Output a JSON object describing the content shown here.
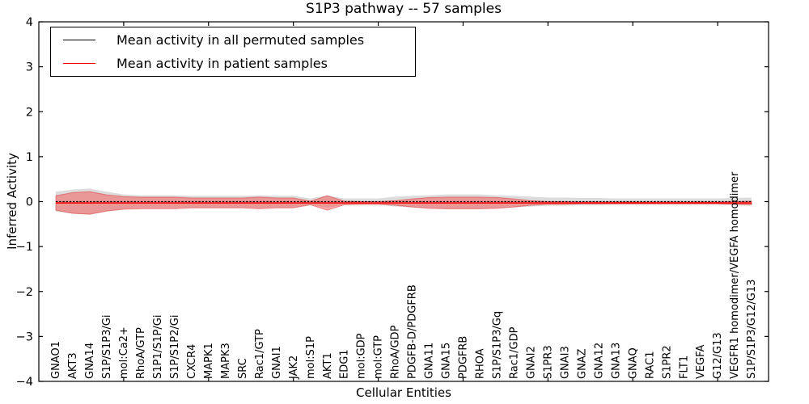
{
  "figure": {
    "title": "S1P3 pathway -- 57 samples",
    "background_color": "#ffffff"
  },
  "legend": {
    "entries": [
      {
        "label": "Mean activity in all permuted samples",
        "color": "#000000"
      },
      {
        "label": "Mean activity in patient samples",
        "color": "#ff0000"
      }
    ]
  },
  "chart_data": {
    "type": "line",
    "title": "S1P3 pathway -- 57 samples",
    "xlabel": "Cellular Entities",
    "ylabel": "Inferred Activity",
    "ylim": [
      -4,
      4
    ],
    "xlim": [
      0,
      43
    ],
    "yticks": [
      4,
      3,
      2,
      1,
      0,
      -1,
      -2,
      -3,
      -4
    ],
    "ytick_labels": [
      "4",
      "3",
      "2",
      "1",
      "0",
      "−1",
      "−2",
      "−3",
      "−4"
    ],
    "xticks_unlabeled": [
      5,
      10,
      15,
      20,
      25,
      30,
      35,
      40
    ],
    "grid": false,
    "legend_position": "upper left",
    "categories": [
      "GNAO1",
      "AKT3",
      "GNA14",
      "S1P/S1P3/Gi",
      "mol:Ca2+",
      "RhoA/GTP",
      "S1P1/S1P/Gi",
      "S1P/S1P2/Gi",
      "CXCR4",
      "MAPK1",
      "MAPK3",
      "SRC",
      "Rac1/GTP",
      "GNAI1",
      "JAK2",
      "mol:S1P",
      "AKT1",
      "EDG1",
      "mol:GDP",
      "mol:GTP",
      "RhoA/GDP",
      "PDGFB-D/PDGFRB",
      "GNA11",
      "GNA15",
      "PDGFRB",
      "RHOA",
      "S1P/S1P3/Gq",
      "Rac1/GDP",
      "GNAI2",
      "S1PR3",
      "GNAI3",
      "GNAZ",
      "GNA12",
      "GNA13",
      "GNAQ",
      "RAC1",
      "S1PR2",
      "FLT1",
      "VEGFA",
      "G12/G13",
      "VEGFR1 homodimer/VEGFA homodimer",
      "S1P/S1P3/G12/G13"
    ],
    "series": [
      {
        "name": "Mean activity in all permuted samples",
        "line_color": "#000000",
        "line_style": "dashdot",
        "band_color": "rgba(128,128,128,0.28)",
        "mean": [
          0,
          0,
          0,
          0,
          0,
          0,
          0,
          0,
          0,
          0,
          0,
          0,
          0,
          0,
          0,
          0,
          0,
          0,
          0,
          0,
          0,
          0,
          0,
          0,
          0,
          0,
          0,
          0,
          0,
          0,
          0,
          0,
          0,
          0,
          0,
          0,
          0,
          0,
          0,
          0,
          0,
          0
        ],
        "std": [
          0.22,
          0.27,
          0.29,
          0.22,
          0.16,
          0.14,
          0.14,
          0.14,
          0.13,
          0.13,
          0.13,
          0.13,
          0.14,
          0.13,
          0.13,
          0.07,
          0.14,
          0.07,
          0.07,
          0.07,
          0.11,
          0.13,
          0.14,
          0.16,
          0.16,
          0.16,
          0.14,
          0.13,
          0.11,
          0.09,
          0.09,
          0.08,
          0.08,
          0.07,
          0.07,
          0.07,
          0.07,
          0.07,
          0.07,
          0.07,
          0.08,
          0.09
        ]
      },
      {
        "name": "Mean activity in patient samples",
        "line_color": "#ff0000",
        "line_style": "solid",
        "band_color": "rgba(255,40,40,0.38)",
        "band_edge_color": "rgba(220,60,60,0.55)",
        "mean": [
          -0.03,
          -0.03,
          -0.03,
          -0.03,
          -0.03,
          -0.03,
          -0.03,
          -0.03,
          -0.03,
          -0.03,
          -0.03,
          -0.03,
          -0.03,
          -0.03,
          -0.03,
          -0.03,
          -0.03,
          -0.03,
          -0.03,
          -0.03,
          -0.03,
          -0.03,
          -0.03,
          -0.03,
          -0.03,
          -0.03,
          -0.03,
          -0.03,
          -0.03,
          -0.03,
          -0.03,
          -0.03,
          -0.03,
          -0.03,
          -0.03,
          -0.03,
          -0.03,
          -0.03,
          -0.03,
          -0.03,
          -0.03,
          -0.03
        ],
        "std": [
          0.16,
          0.23,
          0.25,
          0.18,
          0.14,
          0.13,
          0.13,
          0.13,
          0.11,
          0.11,
          0.11,
          0.11,
          0.13,
          0.11,
          0.11,
          0.04,
          0.16,
          0.04,
          0.03,
          0.03,
          0.05,
          0.09,
          0.12,
          0.13,
          0.13,
          0.13,
          0.12,
          0.09,
          0.05,
          0.03,
          0.03,
          0.02,
          0.02,
          0.02,
          0.02,
          0.02,
          0.02,
          0.02,
          0.02,
          0.02,
          0.03,
          0.04
        ]
      }
    ]
  }
}
